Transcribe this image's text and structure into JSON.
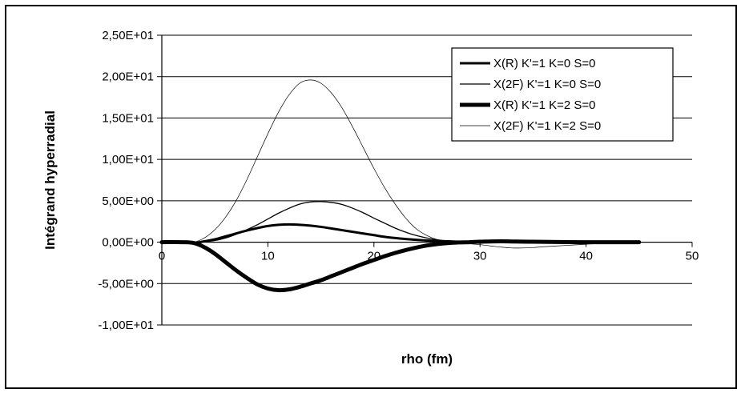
{
  "chart_data": {
    "type": "line",
    "title": "",
    "xlabel": "rho (fm)",
    "ylabel": "Intégrand hyperradial",
    "xlim": [
      0,
      50
    ],
    "ylim": [
      -10,
      25
    ],
    "x_ticks": [
      "0",
      "10",
      "20",
      "30",
      "40",
      "50"
    ],
    "y_ticks": [
      "2,50E+01",
      "2,00E+01",
      "1,50E+01",
      "1,00E+01",
      "5,00E+00",
      "0,00E+00",
      "-5,00E+00",
      "-1,00E+01"
    ],
    "grid": "horizontal",
    "legend_position": "top-right",
    "series": [
      {
        "name": "X(R)  K'=1 K=0 S=0",
        "color": "#000000",
        "weight": "medium",
        "x": [
          0,
          2,
          3,
          4,
          5,
          6,
          7,
          8,
          9,
          10,
          11,
          12,
          13,
          14,
          15,
          16,
          17,
          18,
          19,
          20,
          21,
          22,
          23,
          24,
          25,
          26,
          27,
          28,
          29,
          30,
          32,
          35,
          40,
          45
        ],
        "y": [
          0,
          0,
          -0.1,
          0.1,
          0.35,
          0.7,
          1.05,
          1.4,
          1.7,
          1.95,
          2.1,
          2.15,
          2.1,
          2.0,
          1.85,
          1.65,
          1.45,
          1.25,
          1.05,
          0.85,
          0.65,
          0.5,
          0.38,
          0.28,
          0.2,
          0.14,
          0.1,
          0.06,
          0.04,
          0.02,
          0.01,
          0,
          0,
          0
        ]
      },
      {
        "name": "X(2F) K'=1 K=0 S=0",
        "color": "#000000",
        "weight": "thin",
        "x": [
          0,
          2,
          3,
          4,
          5,
          6,
          7,
          8,
          9,
          10,
          11,
          12,
          13,
          14,
          15,
          16,
          17,
          18,
          19,
          20,
          21,
          22,
          23,
          24,
          25,
          26,
          27,
          28,
          29,
          30,
          32,
          35,
          40,
          45
        ],
        "y": [
          0,
          0,
          -0.05,
          0.05,
          0.2,
          0.5,
          0.95,
          1.5,
          2.1,
          2.8,
          3.5,
          4.1,
          4.6,
          4.85,
          4.9,
          4.8,
          4.55,
          4.1,
          3.55,
          2.9,
          2.3,
          1.7,
          1.2,
          0.8,
          0.5,
          0.28,
          0.14,
          0.05,
          0.01,
          0,
          0,
          0,
          0,
          0
        ]
      },
      {
        "name": "X(R)  K'=1 K=2 S=0",
        "color": "#000000",
        "weight": "thick",
        "x": [
          0,
          2,
          3,
          4,
          5,
          6,
          7,
          8,
          9,
          10,
          11,
          12,
          13,
          14,
          15,
          16,
          17,
          18,
          19,
          20,
          21,
          22,
          23,
          24,
          25,
          26,
          27,
          28,
          29,
          30,
          32,
          35,
          40,
          45
        ],
        "y": [
          0,
          0,
          -0.1,
          -0.6,
          -1.4,
          -2.4,
          -3.4,
          -4.3,
          -5.1,
          -5.6,
          -5.8,
          -5.7,
          -5.4,
          -5.0,
          -4.6,
          -4.1,
          -3.6,
          -3.1,
          -2.6,
          -2.15,
          -1.7,
          -1.3,
          -0.95,
          -0.65,
          -0.4,
          -0.22,
          -0.1,
          -0.03,
          0,
          0.05,
          0.1,
          0.05,
          0,
          0
        ]
      },
      {
        "name": "X(2F) K'=1 K=2 S=0",
        "color": "#000000",
        "weight": "hairline",
        "x": [
          0,
          2,
          3,
          4,
          5,
          6,
          7,
          8,
          9,
          10,
          11,
          12,
          13,
          14,
          15,
          16,
          17,
          18,
          19,
          20,
          21,
          22,
          23,
          24,
          25,
          26,
          27,
          28,
          29,
          30,
          31,
          32,
          33,
          34,
          35,
          36,
          38,
          40,
          42,
          45
        ],
        "y": [
          0,
          0,
          0,
          0.5,
          1.5,
          3.0,
          5.0,
          7.5,
          10.3,
          13.1,
          15.7,
          17.8,
          19.2,
          19.6,
          19.2,
          18.0,
          16.2,
          13.9,
          11.4,
          8.9,
          6.6,
          4.6,
          2.9,
          1.6,
          0.8,
          0.3,
          0.05,
          -0.1,
          -0.2,
          -0.3,
          -0.45,
          -0.6,
          -0.7,
          -0.7,
          -0.65,
          -0.55,
          -0.4,
          -0.25,
          -0.1,
          0
        ]
      }
    ]
  }
}
